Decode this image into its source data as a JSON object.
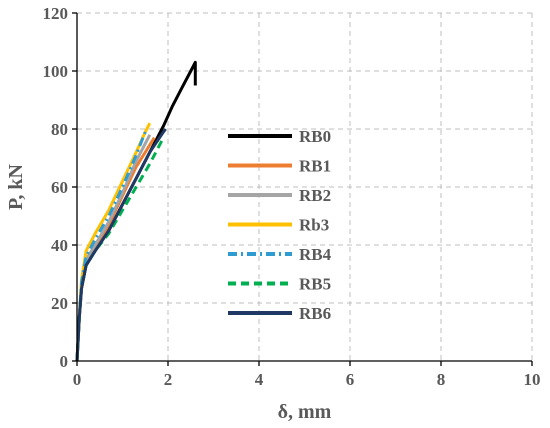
{
  "chart_data": {
    "type": "line",
    "xlabel": "δ, mm",
    "ylabel": "P, kN",
    "xlim": [
      0,
      10
    ],
    "ylim": [
      0,
      120
    ],
    "xticks": [
      0,
      2,
      4,
      6,
      8,
      10
    ],
    "yticks": [
      0,
      20,
      40,
      60,
      80,
      100,
      120
    ],
    "grid": true,
    "legend_position": "right-center",
    "series": [
      {
        "name": "RB0",
        "color": "#000000",
        "dash": "solid",
        "x": [
          0,
          0.05,
          0.1,
          0.2,
          0.4,
          0.7,
          1.0,
          1.3,
          1.6,
          1.9,
          2.1,
          2.3,
          2.5,
          2.6,
          2.6
        ],
        "y": [
          0,
          15,
          25,
          33,
          38,
          45,
          54,
          63,
          72,
          81,
          88,
          94,
          100,
          103,
          95
        ]
      },
      {
        "name": "RB1",
        "color": "#ED7D31",
        "dash": "solid",
        "x": [
          0,
          0.05,
          0.1,
          0.2,
          0.4,
          0.7,
          1.0,
          1.3,
          1.5,
          1.7
        ],
        "y": [
          0,
          15,
          25,
          34,
          39,
          47,
          57,
          67,
          72,
          77
        ]
      },
      {
        "name": "RB2",
        "color": "#A5A5A5",
        "dash": "solid",
        "x": [
          0,
          0.05,
          0.1,
          0.2,
          0.4,
          0.7,
          1.0,
          1.3,
          1.5,
          1.6
        ],
        "y": [
          0,
          15,
          25,
          35,
          40,
          48,
          58,
          69,
          75,
          78
        ]
      },
      {
        "name": "Rb3",
        "color": "#FFC000",
        "dash": "solid",
        "x": [
          0,
          0.05,
          0.1,
          0.2,
          0.4,
          0.7,
          1.0,
          1.3,
          1.5,
          1.6
        ],
        "y": [
          0,
          15,
          28,
          38,
          44,
          52,
          62,
          72,
          79,
          82
        ]
      },
      {
        "name": "RB4",
        "color": "#2E9BD1",
        "dash": "dashdot",
        "x": [
          0,
          0.05,
          0.1,
          0.2,
          0.4,
          0.7,
          1.0,
          1.3,
          1.4,
          1.5
        ],
        "y": [
          0,
          15,
          27,
          36,
          42,
          50,
          60,
          71,
          75,
          79
        ]
      },
      {
        "name": "RB5",
        "color": "#00B050",
        "dash": "dash",
        "x": [
          0,
          0.05,
          0.1,
          0.2,
          0.4,
          0.7,
          1.0,
          1.3,
          1.6,
          1.9
        ],
        "y": [
          0,
          15,
          25,
          33,
          38,
          44,
          52,
          60,
          68,
          77
        ]
      },
      {
        "name": "RB6",
        "color": "#1F3864",
        "dash": "solid",
        "x": [
          0,
          0.05,
          0.1,
          0.2,
          0.4,
          0.7,
          1.0,
          1.3,
          1.6,
          1.9,
          1.95
        ],
        "y": [
          0,
          15,
          25,
          33,
          38,
          45,
          54,
          63,
          72,
          79,
          80
        ]
      }
    ]
  }
}
